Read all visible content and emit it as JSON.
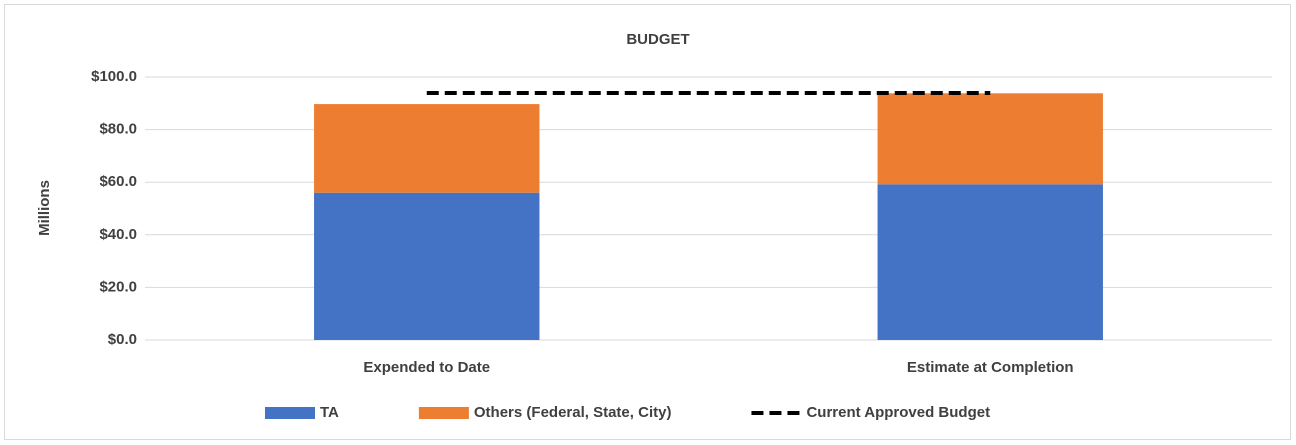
{
  "chart_data": {
    "type": "bar",
    "stacked": true,
    "title": "BUDGET",
    "ylabel": "Millions",
    "categories": [
      "Expended to Date",
      "Estimate at Completion"
    ],
    "series": [
      {
        "name": "TA",
        "type": "bar",
        "color": "#4472c4",
        "values": [
          56.0,
          59.2
        ]
      },
      {
        "name": "Others (Federal, State, City)",
        "type": "bar",
        "color": "#ed7d31",
        "values": [
          33.7,
          34.6
        ]
      },
      {
        "name": "Current Approved Budget",
        "type": "line",
        "color": "#000000",
        "dashed": true,
        "values": [
          93.9,
          93.9
        ]
      }
    ],
    "ylim": [
      0,
      100
    ],
    "yticks": [
      {
        "value": 0,
        "label": "$0.0"
      },
      {
        "value": 20,
        "label": "$20.0"
      },
      {
        "value": 40,
        "label": "$40.0"
      },
      {
        "value": 60,
        "label": "$60.0"
      },
      {
        "value": 80,
        "label": "$80.0"
      },
      {
        "value": 100,
        "label": "$100.0"
      }
    ],
    "grid": true,
    "legend": "bottom"
  }
}
